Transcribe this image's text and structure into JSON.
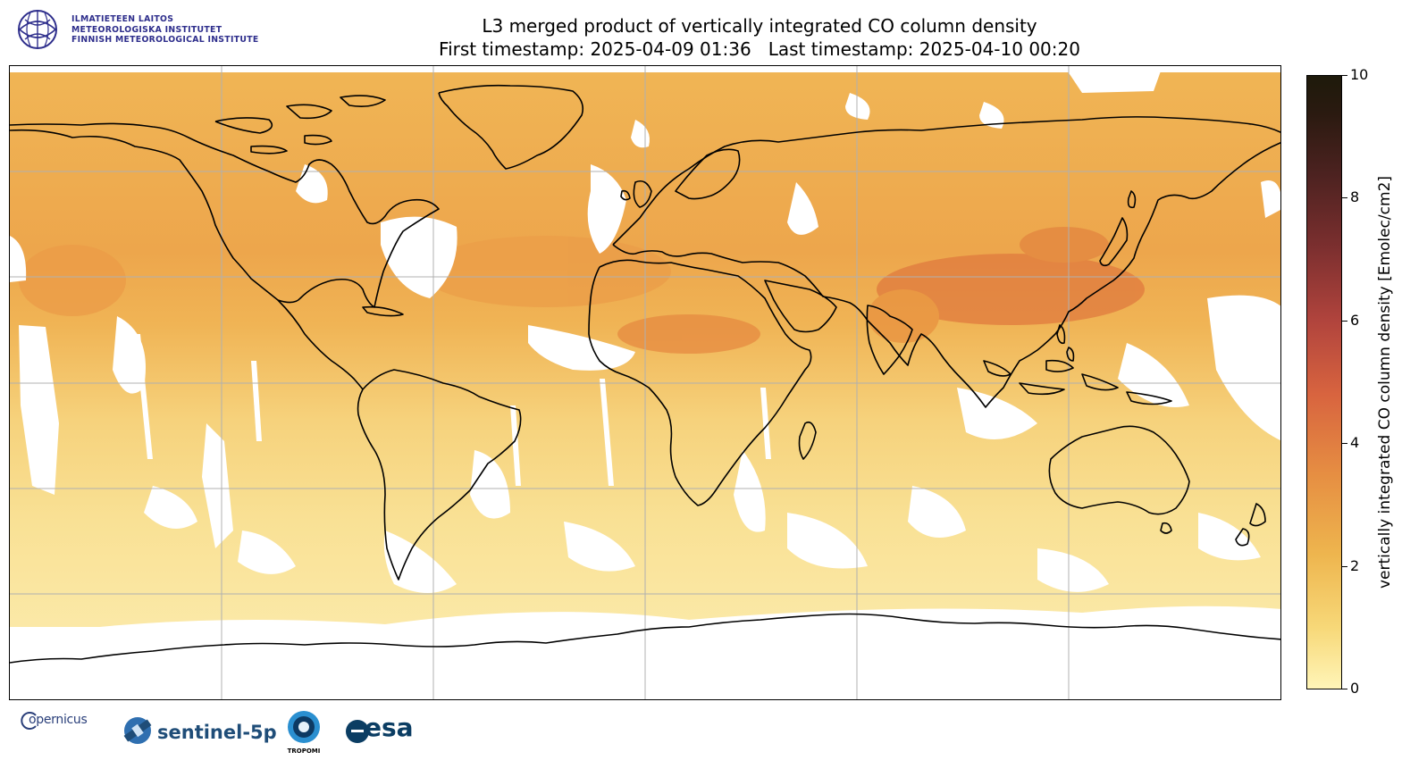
{
  "header": {
    "title_line1": "L3 merged product of vertically integrated CO column density",
    "title_line2": "First timestamp: 2025-04-09 01:36   Last timestamp: 2025-04-10 00:20"
  },
  "institute_logo": {
    "line1": "ILMATIETEEN LAITOS",
    "line2": "METEOROLOGISKA INSTITUTET",
    "line3": "FINNISH METEOROLOGICAL INSTITUTE",
    "color": "#2e2e8c"
  },
  "colorbar": {
    "label": "vertically integrated CO column density [Emolec/cm2]",
    "min": 0,
    "max": 10,
    "ticks": [
      {
        "value": 0,
        "label": "0"
      },
      {
        "value": 2,
        "label": "2"
      },
      {
        "value": 4,
        "label": "4"
      },
      {
        "value": 6,
        "label": "6"
      },
      {
        "value": 8,
        "label": "8"
      },
      {
        "value": 10,
        "label": "10"
      }
    ],
    "colors": [
      "#fff5b8",
      "#f7d878",
      "#eeb54e",
      "#e68e42",
      "#d8643f",
      "#b1443d",
      "#7c2f2f",
      "#4c2220",
      "#1e1a0b"
    ]
  },
  "map": {
    "projection": "equirectangular",
    "gridlines": true,
    "field_colors": {
      "low": "#f8e08a",
      "mid": "#f0b550",
      "high": "#e07a3e",
      "nodata": "#ffffff"
    }
  },
  "footer_logos": {
    "copernicus": "opernicus",
    "sentinel": "sentinel-5p",
    "tropomi": "TROPOMI",
    "esa": "esa"
  }
}
